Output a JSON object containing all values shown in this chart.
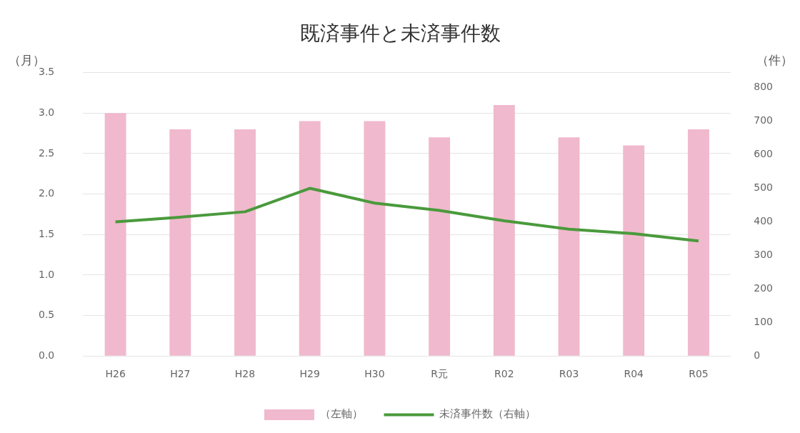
{
  "chart_data": {
    "type": "bar",
    "title": "既済事件と未済事件数",
    "ylabel": "（月）",
    "y2label": "（件）",
    "categories": [
      "H26",
      "H27",
      "H28",
      "H29",
      "H30",
      "R元",
      "R02",
      "R03",
      "R04",
      "R05"
    ],
    "series": [
      {
        "name": "（左軸）",
        "color": "#f0b9cd",
        "values": [
          3.0,
          2.8,
          2.8,
          2.9,
          2.9,
          2.7,
          3.1,
          2.7,
          2.6,
          2.8
        ]
      },
      {
        "name": "未済事件数（右軸）",
        "type": "line",
        "axis": "y2",
        "color": "#4a9a3c",
        "values": [
          400,
          414,
          430,
          500,
          456,
          434,
          403,
          378,
          365,
          343
        ]
      }
    ],
    "ylim": [
      0,
      3.5
    ],
    "yticks": [
      {
        "value": 0,
        "label": "0.0"
      },
      0.5,
      {
        "value": 1,
        "label": "1.0"
      },
      1.5,
      {
        "value": 2,
        "label": "2.0"
      },
      2.5,
      {
        "value": 3,
        "label": "3.0"
      },
      3.5
    ],
    "y2lim": [
      0,
      845
    ],
    "y2ticks": [
      0,
      100,
      200,
      300,
      400,
      500,
      600,
      700,
      800
    ],
    "grid": "y",
    "legend": "bottom",
    "marker": "none",
    "line_style": "solid"
  }
}
